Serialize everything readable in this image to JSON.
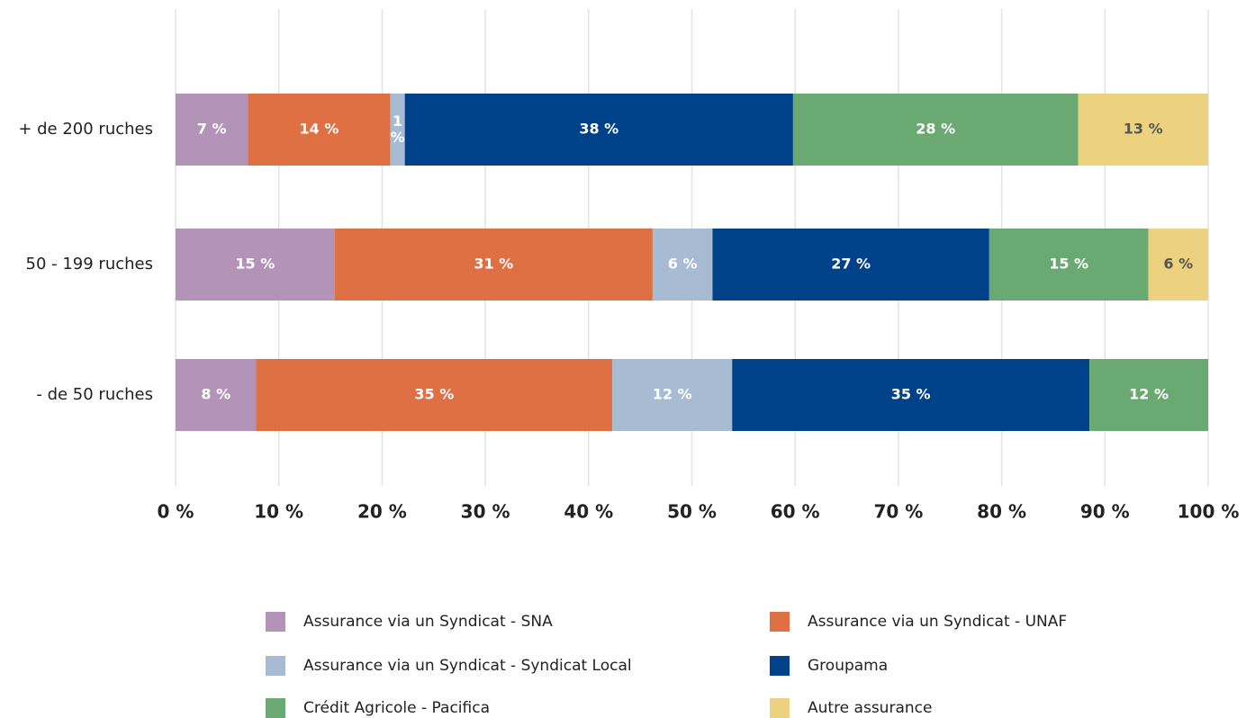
{
  "chart_data": {
    "type": "stacked-bar-horizontal",
    "categories": [
      "+ de 200 ruches",
      "50 - 199 ruches",
      "- de 50 ruches"
    ],
    "series": [
      {
        "name": "Assurance via un Syndicat - SNA",
        "color": "#b394b8",
        "values": [
          7.0,
          15.4,
          7.8
        ],
        "value_labels": [
          "7 %",
          "15 %",
          "8 %"
        ]
      },
      {
        "name": "Assurance via un Syndicat - UNAF",
        "color": "#de7043",
        "values": [
          13.8,
          30.8,
          34.5
        ],
        "value_labels": [
          "14 %",
          "31 %",
          "35 %"
        ]
      },
      {
        "name": "Assurance via un Syndicat - Syndicat Local",
        "color": "#a7bcd3",
        "values": [
          1.4,
          5.8,
          11.6
        ],
        "value_labels": [
          "1 %",
          "6 %",
          "12 %"
        ]
      },
      {
        "name": "Groupama",
        "color": "#00428a",
        "values": [
          37.6,
          26.8,
          34.6
        ],
        "value_labels": [
          "38 %",
          "27 %",
          "35 %"
        ]
      },
      {
        "name": "Crédit Agricole - Pacifica",
        "color": "#6aaa72",
        "values": [
          27.6,
          15.4,
          11.5
        ],
        "value_labels": [
          "28 %",
          "15 %",
          "12 %"
        ]
      },
      {
        "name": "Autre assurance",
        "color": "#ecd27f",
        "values": [
          12.6,
          5.8,
          null
        ],
        "value_labels": [
          "13 %",
          "6 %",
          null
        ]
      }
    ],
    "xlim": [
      0,
      100
    ],
    "xticks": [
      {
        "value": 0,
        "label": "0 %"
      },
      {
        "value": 10,
        "label": "10 %"
      },
      {
        "value": 20,
        "label": "20 %"
      },
      {
        "value": 30,
        "label": "30 %"
      },
      {
        "value": 40,
        "label": "40 %"
      },
      {
        "value": 50,
        "label": "50 %"
      },
      {
        "value": 60,
        "label": "60 %"
      },
      {
        "value": 70,
        "label": "70 %"
      },
      {
        "value": 80,
        "label": "80 %"
      },
      {
        "value": 90,
        "label": "90 %"
      },
      {
        "value": 100,
        "label": "100 %"
      }
    ],
    "grid": true
  }
}
